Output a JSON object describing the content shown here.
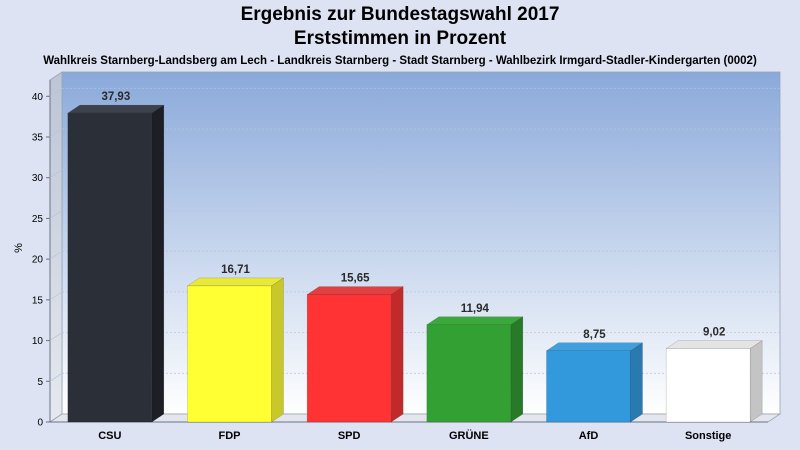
{
  "chart_data": {
    "type": "bar",
    "title": "Ergebnis zur Bundestagswahl 2017",
    "subtitle": "Erststimmen in Prozent",
    "caption": "Wahlkreis Starnberg-Landsberg am Lech - Landkreis Starnberg - Stadt Starnberg - Wahlbezirk Irmgard-Stadler-Kindergarten (0002)",
    "ylabel": "%",
    "ylim": [
      0,
      42
    ],
    "yticks": [
      0,
      5,
      10,
      15,
      20,
      25,
      30,
      35,
      40
    ],
    "grid": true,
    "categories": [
      "CSU",
      "FDP",
      "SPD",
      "GRÜNE",
      "AfD",
      "Sonstige"
    ],
    "values": [
      37.93,
      16.71,
      15.65,
      11.94,
      8.75,
      9.02
    ],
    "value_labels": [
      "37,93",
      "16,71",
      "15,65",
      "11,94",
      "8,75",
      "9,02"
    ],
    "colors": [
      "#2a2f38",
      "#ffff33",
      "#ff3333",
      "#33a033",
      "#3399dd",
      "#ffffff"
    ],
    "side_colors": [
      "#1c1f26",
      "#c8c82a",
      "#c02a2a",
      "#287a28",
      "#2a7ab0",
      "#c4c4c4"
    ],
    "top_colors": [
      "#3c414b",
      "#e8e838",
      "#e04040",
      "#3aa83a",
      "#40a0dd",
      "#e4e4e4"
    ]
  }
}
